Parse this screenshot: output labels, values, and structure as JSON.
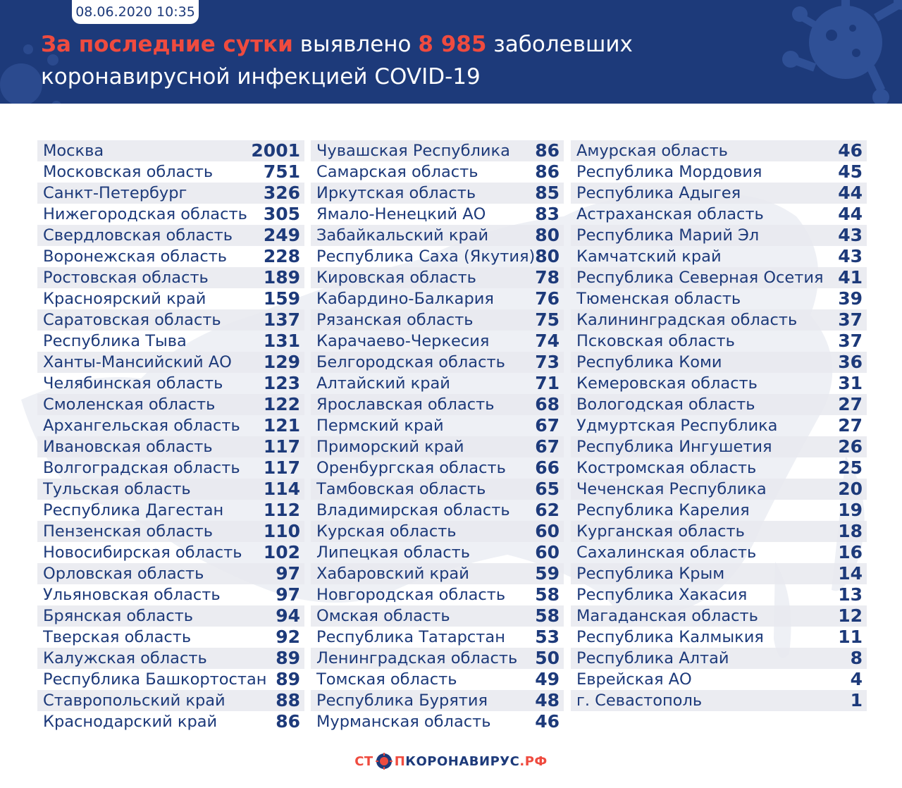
{
  "header": {
    "date": "08.06.2020 10:35",
    "title_accent": "За последние сутки",
    "title_mid": " выявлено ",
    "title_number": "8 985",
    "title_end": " заболевших",
    "title_line2": "коронавирусной инфекцией COVID-19"
  },
  "colors": {
    "header_bg": "#1d3a7a",
    "accent": "#ef4b3f",
    "row_stripe": "#e7e9ef",
    "text": "#1d3a7a"
  },
  "columns": [
    [
      {
        "name": "Москва",
        "value": "2001"
      },
      {
        "name": "Московская область",
        "value": "751"
      },
      {
        "name": "Санкт-Петербург",
        "value": "326"
      },
      {
        "name": "Нижегородская область",
        "value": "305"
      },
      {
        "name": "Свердловская область",
        "value": "249"
      },
      {
        "name": "Воронежская область",
        "value": "228"
      },
      {
        "name": "Ростовская область",
        "value": "189"
      },
      {
        "name": "Красноярский край",
        "value": "159"
      },
      {
        "name": "Саратовская область",
        "value": "137"
      },
      {
        "name": "Республика Тыва",
        "value": "131"
      },
      {
        "name": "Ханты-Мансийский АО",
        "value": "129"
      },
      {
        "name": "Челябинская область",
        "value": "123"
      },
      {
        "name": "Смоленская область",
        "value": "122"
      },
      {
        "name": "Архангельская область",
        "value": "121"
      },
      {
        "name": "Ивановская область",
        "value": "117"
      },
      {
        "name": "Волгоградская область",
        "value": "117"
      },
      {
        "name": "Тульская область",
        "value": "114"
      },
      {
        "name": "Республика Дагестан",
        "value": "112"
      },
      {
        "name": "Пензенская область",
        "value": "110"
      },
      {
        "name": "Новосибирская область",
        "value": "102"
      },
      {
        "name": "Орловская область",
        "value": "97"
      },
      {
        "name": "Ульяновская область",
        "value": "97"
      },
      {
        "name": "Брянская область",
        "value": "94"
      },
      {
        "name": "Тверская область",
        "value": "92"
      },
      {
        "name": "Калужская область",
        "value": "89"
      },
      {
        "name": "Республика Башкортостан",
        "value": "89"
      },
      {
        "name": "Ставропольский край",
        "value": "88"
      },
      {
        "name": "Краснодарский край",
        "value": "86"
      }
    ],
    [
      {
        "name": "Чувашская Республика",
        "value": "86"
      },
      {
        "name": "Самарская область",
        "value": "86"
      },
      {
        "name": "Иркутская область",
        "value": "85"
      },
      {
        "name": "Ямало-Ненецкий АО",
        "value": "83"
      },
      {
        "name": "Забайкальский край",
        "value": "80"
      },
      {
        "name": "Республика Саха (Якутия)",
        "value": "80"
      },
      {
        "name": "Кировская область",
        "value": "78"
      },
      {
        "name": "Кабардино-Балкария",
        "value": "76"
      },
      {
        "name": "Рязанская область",
        "value": "75"
      },
      {
        "name": "Карачаево-Черкесия",
        "value": "74"
      },
      {
        "name": "Белгородская область",
        "value": "73"
      },
      {
        "name": "Алтайский край",
        "value": "71"
      },
      {
        "name": "Ярославская область",
        "value": "68"
      },
      {
        "name": "Пермский край",
        "value": "67"
      },
      {
        "name": "Приморский край",
        "value": "67"
      },
      {
        "name": "Оренбургская область",
        "value": "66"
      },
      {
        "name": "Тамбовская область",
        "value": "65"
      },
      {
        "name": "Владимирская область",
        "value": "62"
      },
      {
        "name": "Курская область",
        "value": "60"
      },
      {
        "name": "Липецкая область",
        "value": "60"
      },
      {
        "name": "Хабаровский край",
        "value": "59"
      },
      {
        "name": "Новгородская область",
        "value": "58"
      },
      {
        "name": "Омская область",
        "value": "58"
      },
      {
        "name": "Республика Татарстан",
        "value": "53"
      },
      {
        "name": "Ленинградская область",
        "value": "50"
      },
      {
        "name": "Томская область",
        "value": "49"
      },
      {
        "name": "Республика Бурятия",
        "value": "48"
      },
      {
        "name": "Мурманская область",
        "value": "46"
      }
    ],
    [
      {
        "name": "Амурская область",
        "value": "46"
      },
      {
        "name": "Республика Мордовия",
        "value": "45"
      },
      {
        "name": "Республика Адыгея",
        "value": "44"
      },
      {
        "name": "Астраханская область",
        "value": "44"
      },
      {
        "name": "Республика Марий Эл",
        "value": "43"
      },
      {
        "name": "Камчатский край",
        "value": "43"
      },
      {
        "name": "Республика Северная Осетия",
        "value": "41"
      },
      {
        "name": "Тюменская область",
        "value": "39"
      },
      {
        "name": "Калининградская область",
        "value": "37"
      },
      {
        "name": "Псковская область",
        "value": "37"
      },
      {
        "name": "Республика Коми",
        "value": "36"
      },
      {
        "name": "Кемеровская область",
        "value": "31"
      },
      {
        "name": "Вологодская область",
        "value": "27"
      },
      {
        "name": "Удмуртская Республика",
        "value": "27"
      },
      {
        "name": "Республика Ингушетия",
        "value": "26"
      },
      {
        "name": "Костромская область",
        "value": "25"
      },
      {
        "name": "Чеченская Республика",
        "value": "20"
      },
      {
        "name": "Республика Карелия",
        "value": "19"
      },
      {
        "name": "Курганская область",
        "value": "18"
      },
      {
        "name": "Сахалинская область",
        "value": "16"
      },
      {
        "name": "Республика Крым",
        "value": "14"
      },
      {
        "name": "Республика Хакасия",
        "value": "13"
      },
      {
        "name": "Магаданская область",
        "value": "12"
      },
      {
        "name": "Республика Калмыкия",
        "value": "11"
      },
      {
        "name": "Республика Алтай",
        "value": "8"
      },
      {
        "name": "Еврейская АО",
        "value": "4"
      },
      {
        "name": "г. Севастополь",
        "value": "1"
      }
    ]
  ],
  "footer": {
    "logo_part1": "СТ",
    "logo_part2": "П",
    "logo_part3": "КОРОНАВИРУС",
    "logo_part4": ".РФ"
  }
}
